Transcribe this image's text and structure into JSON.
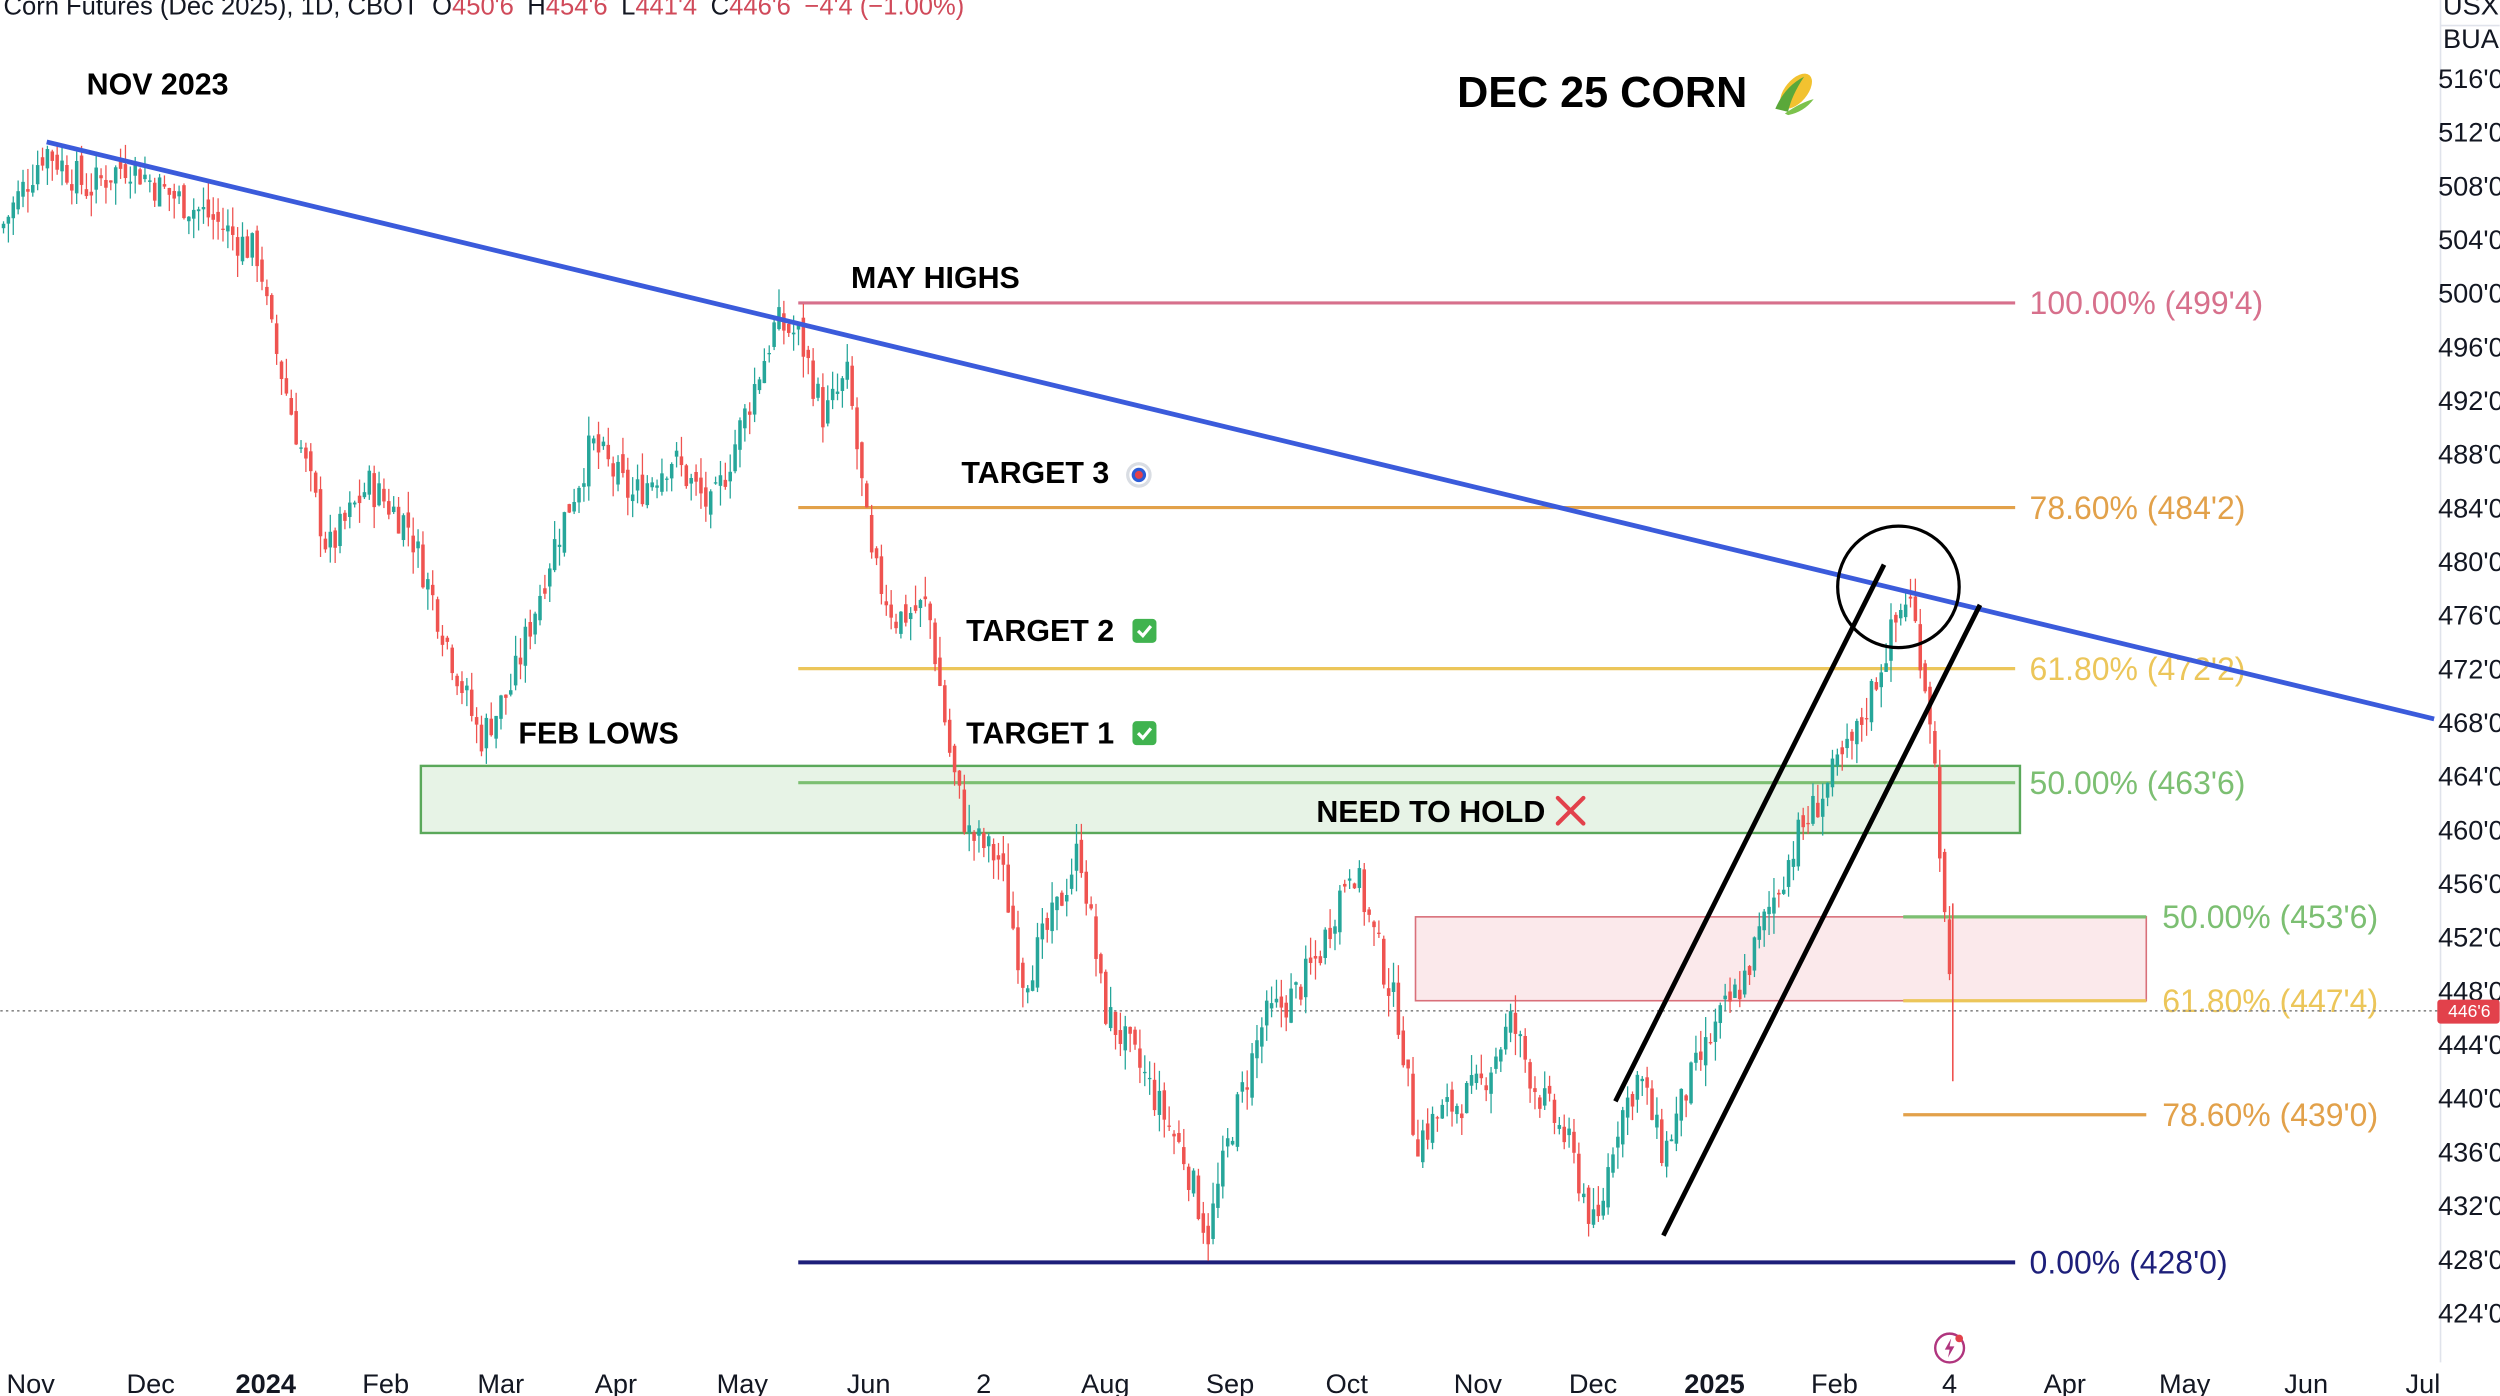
{
  "header": {
    "symbol": "Corn Futures (Dec 2025), 1D, CBOT",
    "o_label": "O",
    "o_value": "450'6",
    "h_label": "H",
    "h_value": "454'6",
    "l_label": "L",
    "l_value": "441'4",
    "c_label": "C",
    "c_value": "446'6",
    "change": "−4'4 (−1.00%)"
  },
  "scale": {
    "currency": "USX",
    "unit": "BUA"
  },
  "title": "DEC 25 CORN",
  "title_icon": "corn-icon",
  "last_price_label": "446'6",
  "annotations": {
    "nov2023": "NOV 2023",
    "may_highs": "MAY HIGHS",
    "feb_lows": "FEB LOWS",
    "target3": "TARGET 3",
    "target2": "TARGET 2",
    "target1": "TARGET 1",
    "need_to_hold": "NEED TO HOLD",
    "target3_icon": "bullseye-icon",
    "target_done_icon": "checkmark-icon",
    "need_to_hold_icon": "cross-icon"
  },
  "colors": {
    "up": "#26a69a",
    "down": "#ef5350",
    "trendline": "#3b5bdb",
    "fib_100": "#d7708c",
    "fib_786": "#e2a14a",
    "fib_618": "#ecc65a",
    "fib_50": "#7cbf72",
    "fib_0": "#1d1f7a",
    "price_tag": "#e2414b"
  },
  "fib_levels_large": [
    {
      "label": "100.00% (499'4)",
      "value": 499.5,
      "color": "#d7708c"
    },
    {
      "label": "78.60% (484'2)",
      "value": 484.25,
      "color": "#e2a14a"
    },
    {
      "label": "61.80% (472'2)",
      "value": 472.25,
      "color": "#ecc65a"
    },
    {
      "label": "50.00% (463'6)",
      "value": 463.75,
      "color": "#7cbf72"
    },
    {
      "label": "0.00% (428'0)",
      "value": 428.0,
      "color": "#1d1f7a"
    }
  ],
  "fib_levels_small": [
    {
      "label": "50.00% (453'6)",
      "value": 453.75,
      "color": "#7cbf72"
    },
    {
      "label": "61.80% (447'4)",
      "value": 447.5,
      "color": "#ecc65a"
    },
    {
      "label": "78.60% (439'0)",
      "value": 439.0,
      "color": "#e2a14a"
    }
  ],
  "chart_data": {
    "type": "candlestick",
    "ylim": [
      422,
      518
    ],
    "y_ticks": [
      "516'0",
      "512'0",
      "508'0",
      "504'0",
      "500'0",
      "496'0",
      "492'0",
      "488'0",
      "484'0",
      "480'0",
      "476'0",
      "472'0",
      "468'0",
      "464'0",
      "460'0",
      "456'0",
      "452'0",
      "448'0",
      "444'0",
      "440'0",
      "436'0",
      "432'0",
      "428'0",
      "424'0"
    ],
    "x_ticks": [
      "Nov",
      "Dec",
      "2024",
      "Feb",
      "Mar",
      "Apr",
      "May",
      "Jun",
      "2",
      "Aug",
      "Sep",
      "Oct",
      "Nov",
      "Dec",
      "2025",
      "Feb",
      "4",
      "Apr",
      "May",
      "Jun",
      "Jul"
    ],
    "anchors": [
      [
        0,
        505
      ],
      [
        28,
        511
      ],
      [
        55,
        508
      ],
      [
        80,
        510
      ],
      [
        100,
        508
      ],
      [
        130,
        506
      ],
      [
        162,
        503
      ],
      [
        168,
        498
      ],
      [
        185,
        490
      ],
      [
        205,
        481
      ],
      [
        230,
        486
      ],
      [
        255,
        483
      ],
      [
        280,
        474
      ],
      [
        300,
        467
      ],
      [
        320,
        471
      ],
      [
        345,
        481
      ],
      [
        370,
        489
      ],
      [
        395,
        485
      ],
      [
        420,
        488
      ],
      [
        445,
        484
      ],
      [
        468,
        492
      ],
      [
        485,
        498
      ],
      [
        500,
        497
      ],
      [
        515,
        491
      ],
      [
        530,
        494
      ],
      [
        545,
        480
      ],
      [
        560,
        476
      ],
      [
        580,
        477
      ],
      [
        595,
        465
      ],
      [
        605,
        460
      ],
      [
        625,
        458
      ],
      [
        640,
        449
      ],
      [
        660,
        454
      ],
      [
        675,
        459
      ],
      [
        690,
        447
      ],
      [
        715,
        442
      ],
      [
        740,
        436
      ],
      [
        755,
        430
      ],
      [
        770,
        438
      ],
      [
        790,
        446
      ],
      [
        810,
        448
      ],
      [
        825,
        451
      ],
      [
        845,
        458
      ],
      [
        860,
        452
      ],
      [
        875,
        446
      ],
      [
        885,
        437
      ],
      [
        900,
        439
      ],
      [
        925,
        441
      ],
      [
        945,
        446
      ],
      [
        960,
        441
      ],
      [
        980,
        437
      ],
      [
        998,
        430
      ],
      [
        1010,
        438
      ],
      [
        1025,
        442
      ],
      [
        1040,
        436
      ],
      [
        1055,
        441
      ],
      [
        1075,
        446
      ],
      [
        1090,
        449
      ],
      [
        1105,
        454
      ],
      [
        1125,
        460
      ],
      [
        1140,
        463
      ],
      [
        1160,
        467
      ],
      [
        1180,
        474
      ],
      [
        1193,
        478
      ],
      [
        1200,
        474
      ],
      [
        1208,
        468
      ],
      [
        1213,
        459
      ],
      [
        1218,
        449
      ],
      [
        1221,
        446.75
      ]
    ],
    "trendline": {
      "start": [
        "Nov 2023",
        511.5
      ],
      "end": [
        "Jul 2025",
        468.5
      ]
    },
    "channel": {
      "upper": [
        [
          1010,
          440
        ],
        [
          1178,
          480
        ]
      ],
      "lower": [
        [
          1040,
          430
        ],
        [
          1238,
          477
        ]
      ]
    },
    "support_zone": {
      "low": 460,
      "high": 465
    },
    "resistance_zone": {
      "low": 447.5,
      "high": 453.75
    },
    "last_price": 446.75
  }
}
